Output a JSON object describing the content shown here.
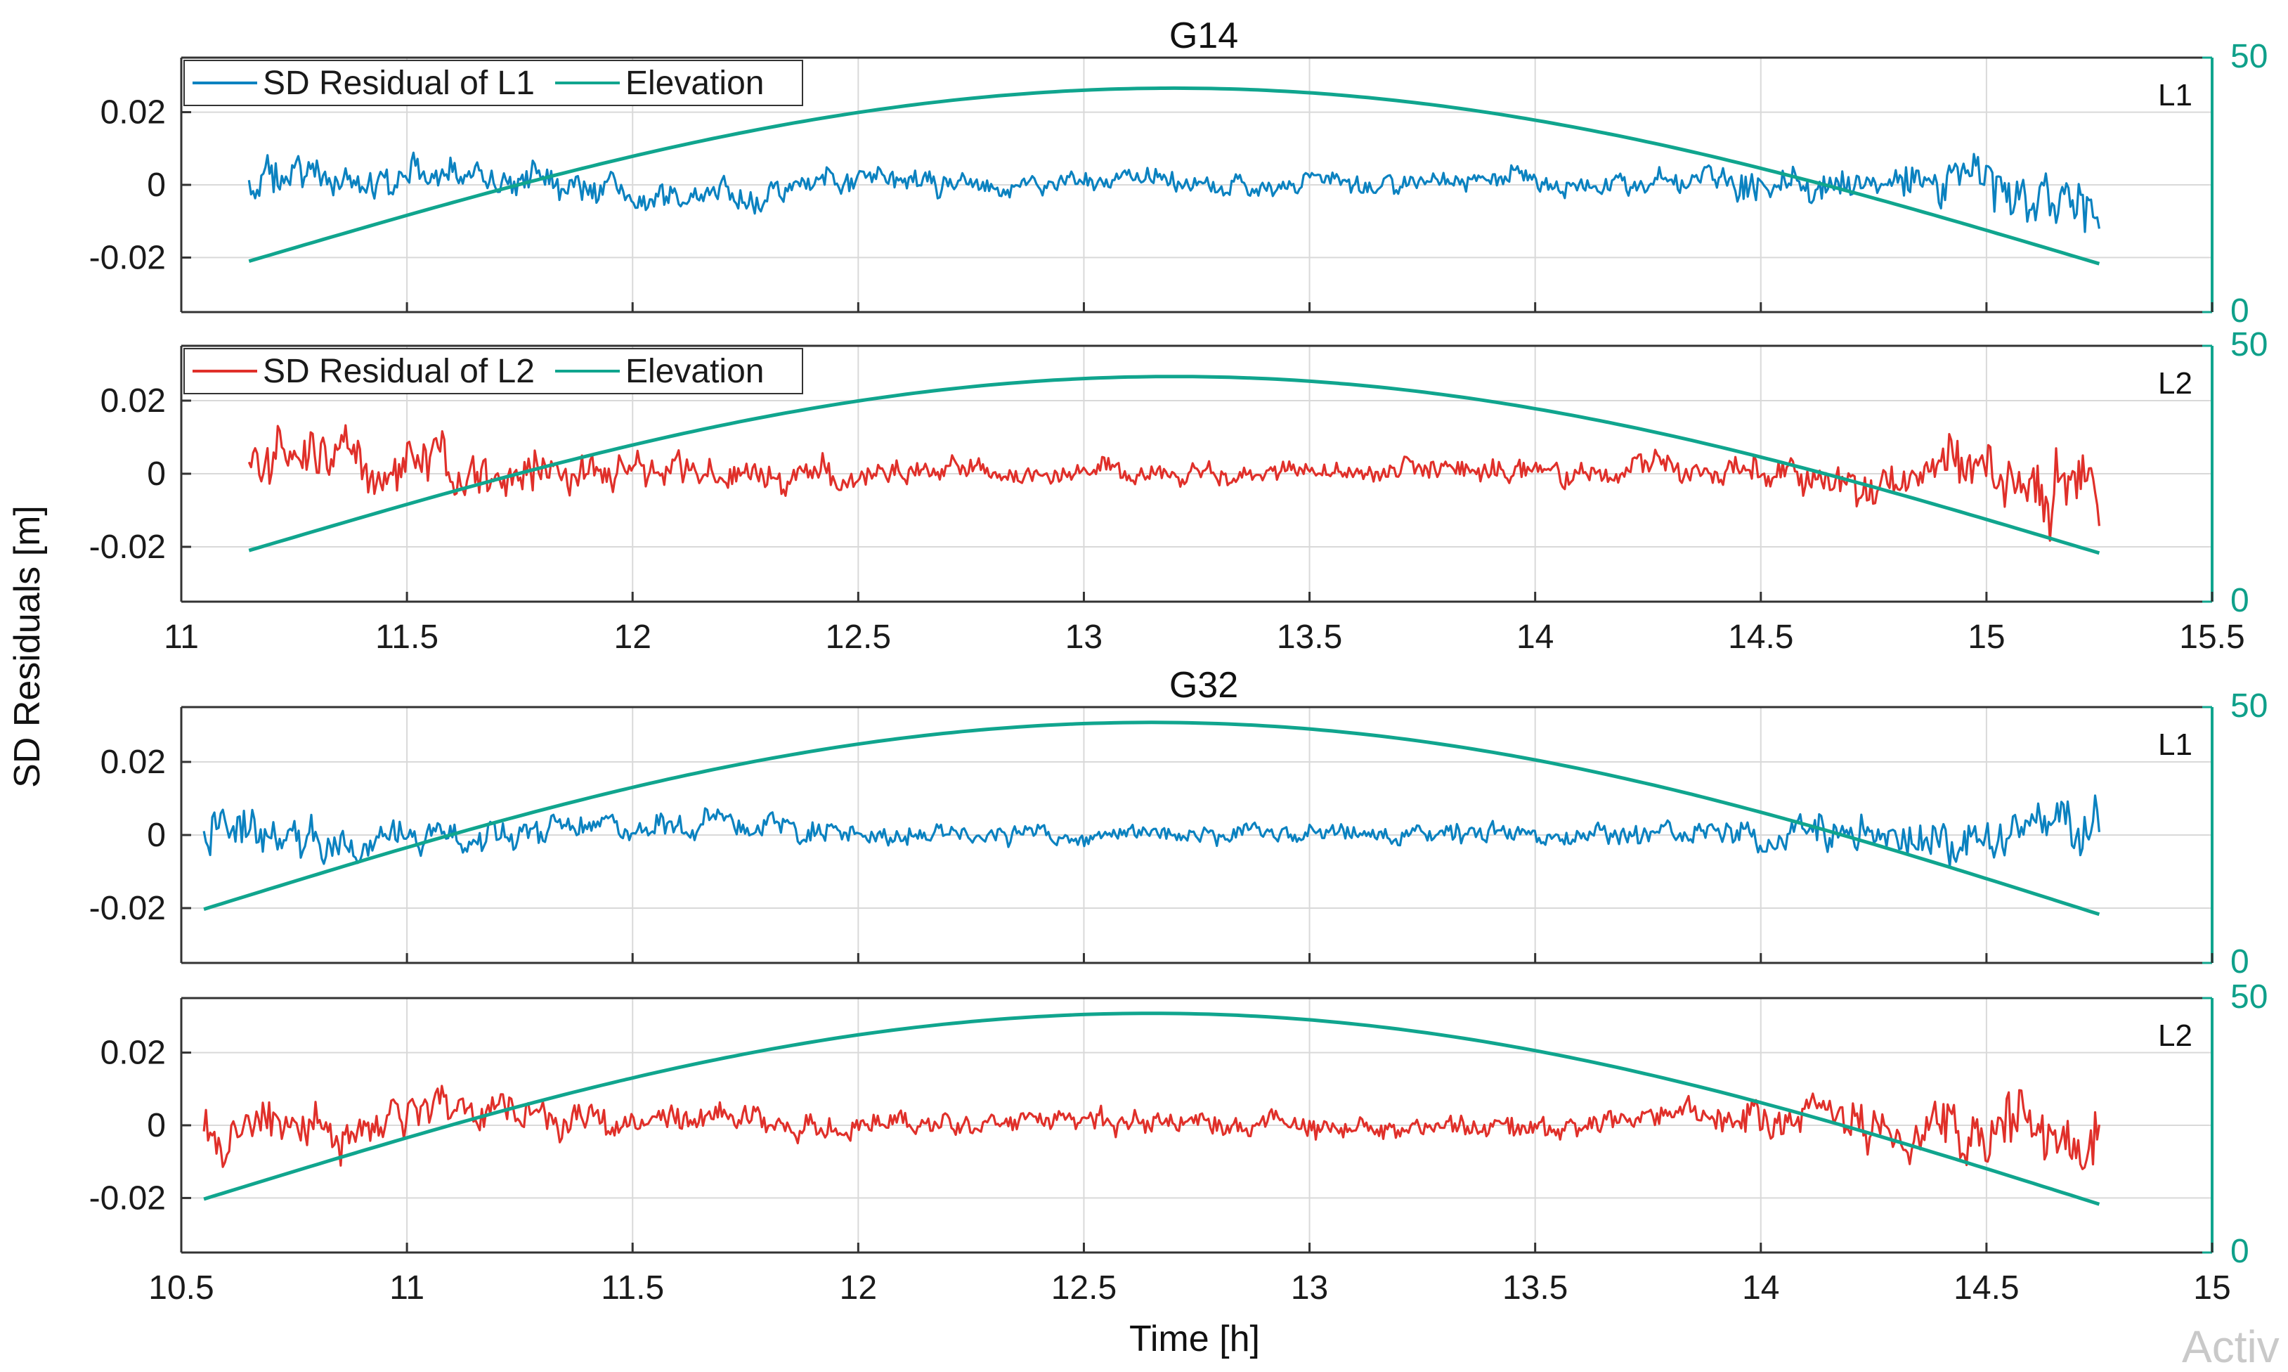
{
  "colors": {
    "l1": "#0b82c0",
    "l2": "#e0302a",
    "elevation": "#10a58e",
    "grid": "#d9d9d9",
    "axis": "#333333"
  },
  "ylabel": "SD Residuals [m]",
  "xlabel": "Time [h]",
  "watermark": "Activ",
  "chart_data": [
    {
      "type": "line",
      "group": "G14",
      "title": "G14",
      "panel_label": "L1",
      "legend": [
        "SD Residual of L1",
        "Elevation"
      ],
      "xlim": [
        11,
        15.5
      ],
      "ylim": [
        -0.035,
        0.035
      ],
      "y2lim": [
        0,
        50
      ],
      "xticks": [
        "11",
        "11.5",
        "12",
        "12.5",
        "13",
        "13.5",
        "14",
        "14.5",
        "15",
        "15.5"
      ],
      "yticks": [
        "0.02",
        "0",
        "-0.02"
      ],
      "y2ticks": [
        "50",
        "0"
      ],
      "show_xticks": false,
      "residual": {
        "name": "SD Residual of L1",
        "t_start": 11.15,
        "t_end": 15.25,
        "n": 900,
        "envelope": [
          [
            11.15,
            0.008
          ],
          [
            12.0,
            0.006
          ],
          [
            12.8,
            0.004
          ],
          [
            13.5,
            0.0042
          ],
          [
            14.3,
            0.005
          ],
          [
            14.8,
            0.008
          ],
          [
            15.25,
            0.012
          ]
        ]
      },
      "elevation": {
        "name": "Elevation",
        "t_start": 11.15,
        "t_end": 15.25,
        "peak_t": 13.2,
        "peak_deg": 44,
        "start_deg": 10,
        "end_deg": 9.5
      }
    },
    {
      "type": "line",
      "group": "G14",
      "title": "",
      "panel_label": "L2",
      "legend": [
        "SD Residual of L2",
        "Elevation"
      ],
      "xlim": [
        11,
        15.5
      ],
      "ylim": [
        -0.035,
        0.035
      ],
      "y2lim": [
        0,
        50
      ],
      "xticks": [
        "11",
        "11.5",
        "12",
        "12.5",
        "13",
        "13.5",
        "14",
        "14.5",
        "15",
        "15.5"
      ],
      "yticks": [
        "0.02",
        "0",
        "-0.02"
      ],
      "y2ticks": [
        "50",
        "0"
      ],
      "show_xticks": true,
      "residual": {
        "name": "SD Residual of L2",
        "t_start": 11.15,
        "t_end": 15.25,
        "n": 900,
        "envelope": [
          [
            11.15,
            0.012
          ],
          [
            11.7,
            0.01
          ],
          [
            12.3,
            0.006
          ],
          [
            13.0,
            0.004
          ],
          [
            13.8,
            0.0045
          ],
          [
            14.5,
            0.006
          ],
          [
            14.9,
            0.01
          ],
          [
            15.25,
            0.016
          ]
        ]
      },
      "elevation": {
        "name": "Elevation",
        "t_start": 11.15,
        "t_end": 15.25,
        "peak_t": 13.2,
        "peak_deg": 44,
        "start_deg": 10,
        "end_deg": 9.5
      }
    },
    {
      "type": "line",
      "group": "G32",
      "title": "G32",
      "panel_label": "L1",
      "legend": [],
      "xlim": [
        10.5,
        15
      ],
      "ylim": [
        -0.035,
        0.035
      ],
      "y2lim": [
        0,
        50
      ],
      "xticks": [
        "10.5",
        "11",
        "11.5",
        "12",
        "12.5",
        "13",
        "13.5",
        "14",
        "14.5",
        "15"
      ],
      "yticks": [
        "0.02",
        "0",
        "-0.02"
      ],
      "y2ticks": [
        "50",
        "0"
      ],
      "show_xticks": false,
      "residual": {
        "name": "SD Residual of L1",
        "t_start": 10.55,
        "t_end": 14.75,
        "n": 900,
        "envelope": [
          [
            10.55,
            0.009
          ],
          [
            11.3,
            0.006
          ],
          [
            12.2,
            0.004
          ],
          [
            13.0,
            0.0038
          ],
          [
            13.8,
            0.0045
          ],
          [
            14.3,
            0.008
          ],
          [
            14.75,
            0.012
          ]
        ]
      },
      "elevation": {
        "name": "Elevation",
        "t_start": 10.55,
        "t_end": 14.75,
        "peak_t": 12.65,
        "peak_deg": 47,
        "start_deg": 10.5,
        "end_deg": 9.5
      }
    },
    {
      "type": "line",
      "group": "G32",
      "title": "",
      "panel_label": "L2",
      "legend": [],
      "xlim": [
        10.5,
        15
      ],
      "ylim": [
        -0.035,
        0.035
      ],
      "y2lim": [
        0,
        50
      ],
      "xticks": [
        "10.5",
        "11",
        "11.5",
        "12",
        "12.5",
        "13",
        "13.5",
        "14",
        "14.5",
        "15"
      ],
      "yticks": [
        "0.02",
        "0",
        "-0.02"
      ],
      "y2ticks": [
        "50",
        "0"
      ],
      "show_xticks": true,
      "residual": {
        "name": "SD Residual of L2",
        "t_start": 10.55,
        "t_end": 14.75,
        "n": 900,
        "envelope": [
          [
            10.55,
            0.011
          ],
          [
            11.2,
            0.007
          ],
          [
            12.0,
            0.005
          ],
          [
            13.0,
            0.0045
          ],
          [
            13.8,
            0.005
          ],
          [
            14.2,
            0.01
          ],
          [
            14.75,
            0.014
          ]
        ]
      },
      "elevation": {
        "name": "Elevation",
        "t_start": 10.55,
        "t_end": 14.75,
        "peak_t": 12.65,
        "peak_deg": 47,
        "start_deg": 10.5,
        "end_deg": 9.5
      }
    }
  ]
}
